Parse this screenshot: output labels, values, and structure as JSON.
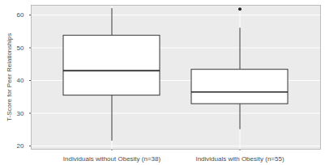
{
  "chart_data": {
    "type": "box",
    "y_label": "T-Score for Peer Relationships",
    "categories": [
      "Individuals without Obesity (n=38)",
      "Individuals with Obesity (n=55)"
    ],
    "min": [
      21.5,
      25
    ],
    "q1": [
      35.4,
      32.8
    ],
    "median": [
      43,
      36.5
    ],
    "q3": [
      53.7,
      43.3
    ],
    "max": [
      62,
      56
    ],
    "outliers": [
      [],
      [
        61.8
      ]
    ],
    "ylim": [
      19,
      63
    ],
    "yticks": [
      20,
      30,
      40,
      50,
      60
    ],
    "grid": true
  }
}
